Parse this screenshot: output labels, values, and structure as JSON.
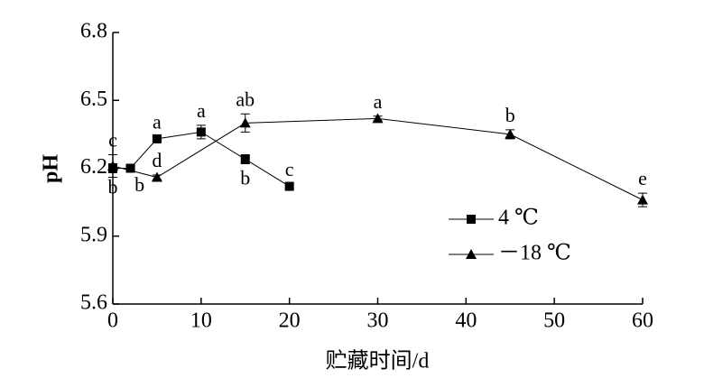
{
  "chart_data": {
    "type": "line",
    "x_label": "贮藏时间/d",
    "y_label": "pH",
    "xlim": [
      0,
      60
    ],
    "xticks": [
      0,
      10,
      20,
      30,
      40,
      50,
      60
    ],
    "ylim": [
      5.6,
      6.8
    ],
    "yticks": [
      5.6,
      5.9,
      6.2,
      6.5,
      6.8
    ],
    "legend": "lower right",
    "series": [
      {
        "name": "4 ℃",
        "color": "#000000",
        "marker": "square",
        "x": [
          0,
          2,
          5,
          10,
          15,
          20
        ],
        "values": [
          6.2,
          6.2,
          6.33,
          6.36,
          6.24,
          6.12
        ],
        "errors": [
          0.02,
          0.01,
          0.01,
          0.03,
          0.02,
          0.01
        ],
        "letters": [
          "b",
          "b",
          "a",
          "a",
          "b",
          "c"
        ]
      },
      {
        "name": "－18 ℃",
        "color": "#000000",
        "marker": "triangle",
        "x": [
          0,
          5,
          15,
          30,
          45,
          60
        ],
        "values": [
          6.21,
          6.16,
          6.4,
          6.42,
          6.35,
          6.06
        ],
        "errors": [
          0.05,
          0.01,
          0.04,
          0.01,
          0.02,
          0.03
        ],
        "letters": [
          "c",
          "d",
          "ab",
          "a",
          "b",
          "e"
        ]
      }
    ]
  }
}
